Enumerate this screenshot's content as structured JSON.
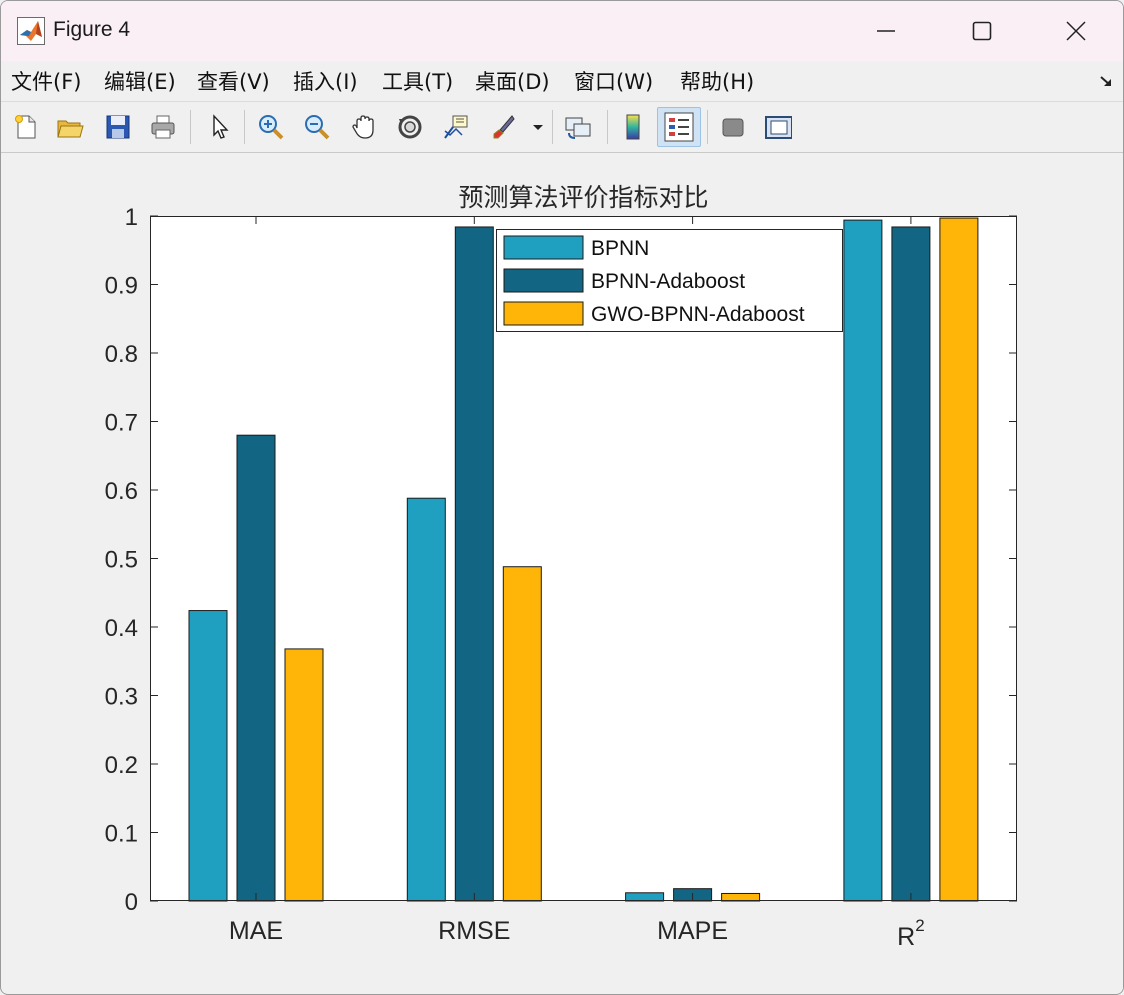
{
  "window": {
    "title": "Figure 4",
    "icon": "matlab-logo-icon"
  },
  "menu": [
    {
      "label": "文件(F)",
      "name": "menu-file"
    },
    {
      "label": "编辑(E)",
      "name": "menu-edit"
    },
    {
      "label": "查看(V)",
      "name": "menu-view"
    },
    {
      "label": "插入(I)",
      "name": "menu-insert"
    },
    {
      "label": "工具(T)",
      "name": "menu-tools"
    },
    {
      "label": "桌面(D)",
      "name": "menu-desktop"
    },
    {
      "label": "窗口(W)",
      "name": "menu-window"
    },
    {
      "label": "帮助(H)",
      "name": "menu-help"
    }
  ],
  "toolbar": [
    "new-figure-icon",
    "open-file-icon",
    "save-icon",
    "print-icon",
    "select-pointer-icon",
    "zoom-in-icon",
    "zoom-out-icon",
    "pan-hand-icon",
    "rotate-3d-icon",
    "data-cursor-icon",
    "brush-icon",
    "brush-dropdown-icon",
    "link-plot-icon",
    "colorbar-icon",
    "legend-icon",
    "hide-plot-tools-icon",
    "show-plot-tools-icon"
  ],
  "colors": {
    "series1": "#20a0c0",
    "series2": "#136683",
    "series3": "#ffb508"
  },
  "chart_data": {
    "type": "bar",
    "title": "预测算法评价指标对比",
    "categories": [
      "MAE",
      "RMSE",
      "MAPE",
      "R"
    ],
    "category_superscripts": [
      "",
      "",
      "",
      "2"
    ],
    "series": [
      {
        "name": "BPNN",
        "values": [
          0.424,
          0.588,
          0.012,
          0.994
        ]
      },
      {
        "name": "BPNN-Adaboost",
        "values": [
          0.68,
          0.984,
          0.018,
          0.984
        ]
      },
      {
        "name": "GWO-BPNN-Adaboost",
        "values": [
          0.368,
          0.488,
          0.011,
          0.997
        ]
      }
    ],
    "ylim": [
      0,
      1
    ],
    "yticks": [
      "0",
      "0.1",
      "0.2",
      "0.3",
      "0.4",
      "0.5",
      "0.6",
      "0.7",
      "0.8",
      "0.9",
      "1"
    ],
    "xlabel": "",
    "ylabel": "",
    "grid": false,
    "legend_position": "top-center"
  }
}
